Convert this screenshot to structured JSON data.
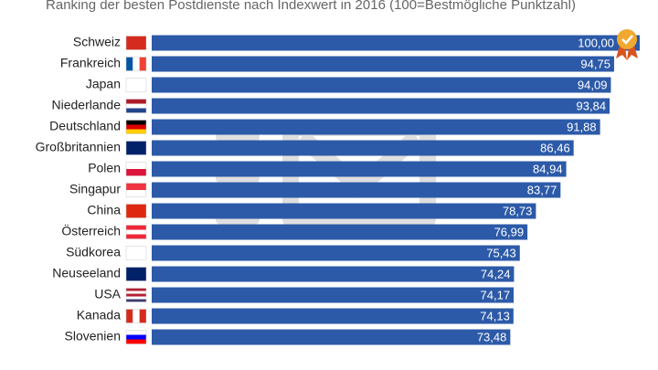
{
  "chart_data": {
    "type": "bar",
    "orientation": "horizontal",
    "title": "Ranking der besten Postdienste nach Indexwert in 2016 (100=Bestmögliche Punktzahl)",
    "categories": [
      "Schweiz",
      "Frankreich",
      "Japan",
      "Niederlande",
      "Deutschland",
      "Großbritannien",
      "Polen",
      "Singapur",
      "China",
      "Österreich",
      "Südkorea",
      "Neuseeland",
      "USA",
      "Kanada",
      "Slovenien"
    ],
    "values": [
      100,
      94.75,
      94.09,
      93.84,
      91.88,
      86.46,
      84.94,
      83.77,
      78.73,
      76.99,
      75.43,
      74.24,
      74.17,
      74.13,
      73.48
    ],
    "value_labels": [
      "100,00",
      "94,75",
      "94,09",
      "93,84",
      "91,88",
      "86,46",
      "84,94",
      "83,77",
      "78,73",
      "76,99",
      "75,43",
      "74,24",
      "74,17",
      "74,13",
      "73,48"
    ],
    "color": "#2c5aa8",
    "xlim": [
      0,
      100
    ]
  }
}
